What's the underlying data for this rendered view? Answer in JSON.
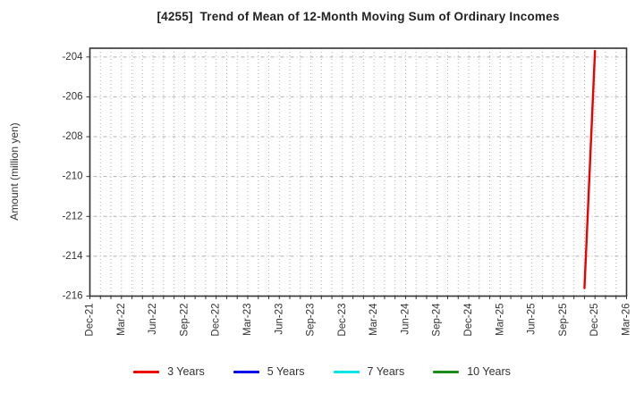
{
  "title": "[4255]  Trend of Mean of 12-Month Moving Sum of Ordinary Incomes",
  "y_axis_label": "Amount (million yen)",
  "chart_data": {
    "type": "line",
    "title": "[4255]  Trend of Mean of 12-Month Moving Sum of Ordinary Incomes",
    "ylabel": "Amount (million yen)",
    "x_tick_labels": [
      "Dec-21",
      "Mar-22",
      "Jun-22",
      "Sep-22",
      "Dec-22",
      "Mar-23",
      "Jun-23",
      "Sep-23",
      "Dec-23",
      "Mar-24",
      "Jun-24",
      "Sep-24",
      "Dec-24",
      "Mar-25",
      "Jun-25",
      "Sep-25",
      "Dec-25",
      "Mar-26"
    ],
    "months_per_tick": 3,
    "y_ticks": [
      -204,
      -206,
      -208,
      -210,
      -212,
      -214,
      -216
    ],
    "ylim": [
      -216.0,
      -203.56
    ],
    "grid": true,
    "legend_position": "bottom",
    "series": [
      {
        "name": "3 Years",
        "color": "#ee0000",
        "points": [
          {
            "month": "Nov-25",
            "month_offset": 47,
            "value": -215.6
          },
          {
            "month": "Dec-25",
            "month_offset": 48,
            "value": -203.7
          }
        ]
      },
      {
        "name": "5 Years",
        "color": "#0000ee",
        "points": []
      },
      {
        "name": "7 Years",
        "color": "#00e6e6",
        "points": []
      },
      {
        "name": "10 Years",
        "color": "#1a8c1a",
        "points": []
      }
    ],
    "colors": {
      "axis_border": "#333333",
      "grid": "#b0b0b0",
      "tick_text": "#333333"
    }
  }
}
